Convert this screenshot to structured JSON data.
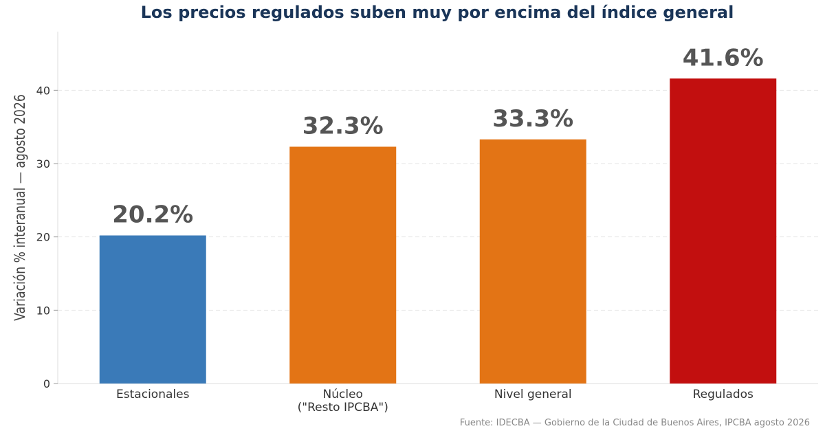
{
  "chart_data": {
    "type": "bar",
    "title": "Los precios regulados suben muy por encima del índice general",
    "ylabel": "Variación % interanual — agosto 2026",
    "xlabel": "",
    "categories": [
      [
        "Estacionales"
      ],
      [
        "Núcleo",
        "(\"Resto IPCBA\")"
      ],
      [
        "Nivel general"
      ],
      [
        "Regulados"
      ]
    ],
    "values": [
      20.2,
      32.3,
      33.3,
      41.6
    ],
    "data_labels": [
      "20.2%",
      "32.3%",
      "33.3%",
      "41.6%"
    ],
    "colors": [
      "#3a7ab8",
      "#e37415",
      "#e37415",
      "#c20f0f"
    ],
    "ylim": [
      0,
      48
    ],
    "yticks": [
      0,
      10,
      20,
      30,
      40
    ],
    "grid": true,
    "source": "Fuente: IDECBA — Gobierno de la Ciudad de Buenos Aires, IPCBA agosto 2026"
  }
}
